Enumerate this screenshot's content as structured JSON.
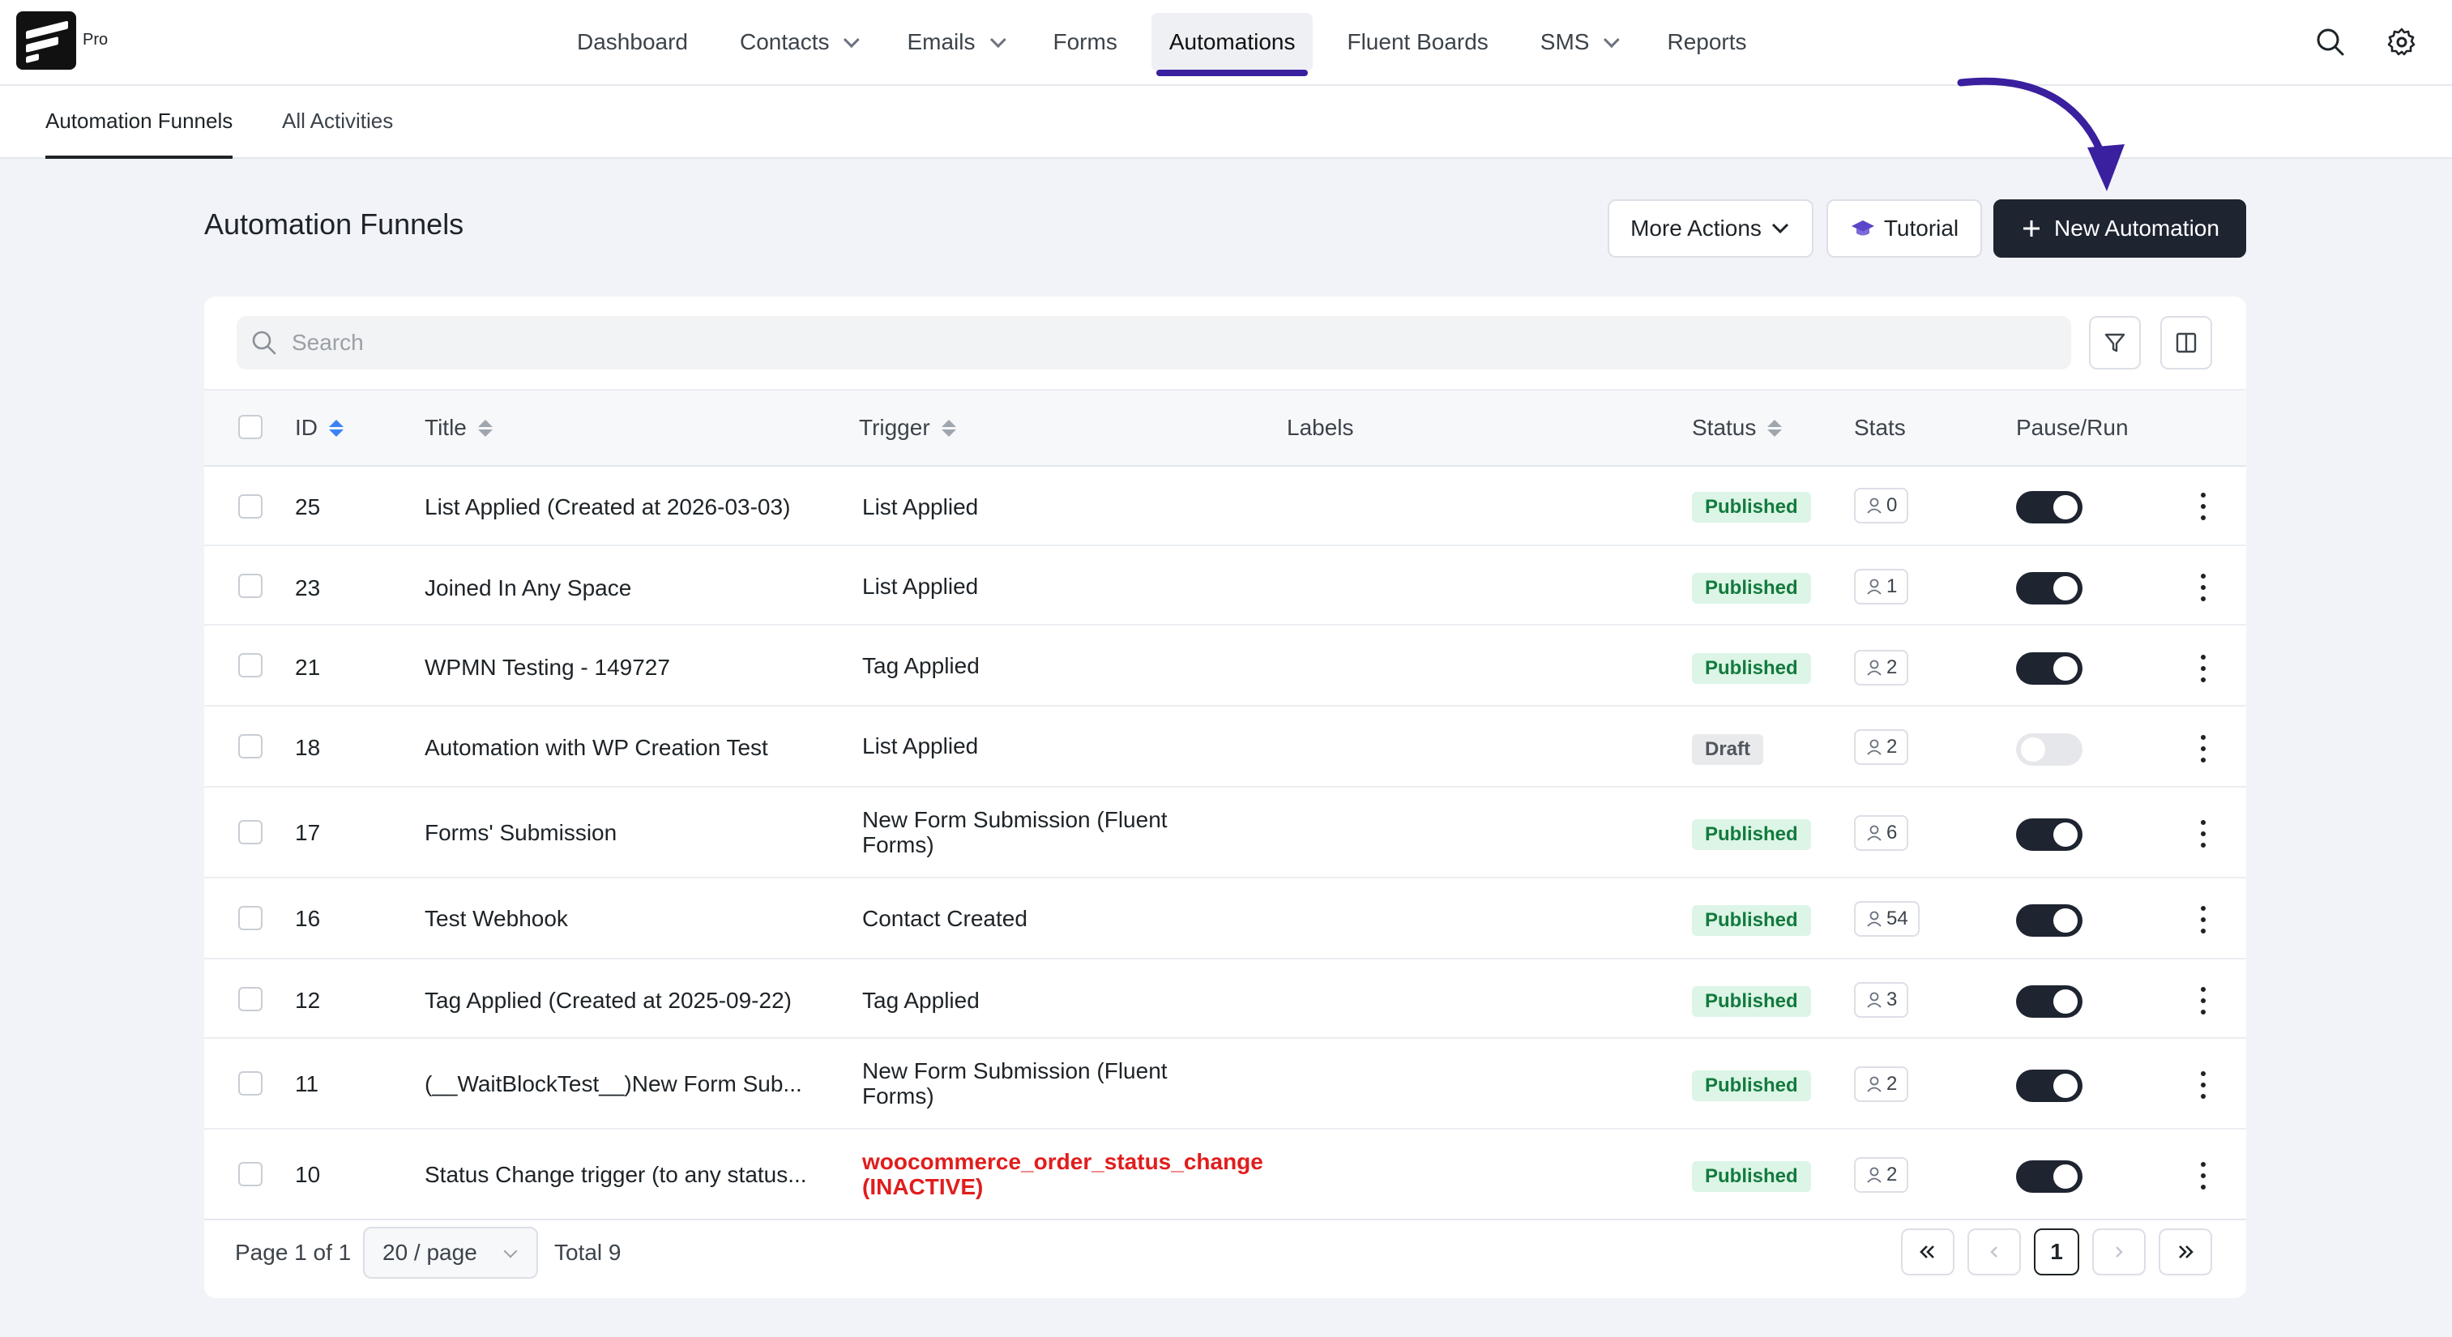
{
  "brand": {
    "tier": "Pro"
  },
  "nav": {
    "items": [
      {
        "label": "Dashboard"
      },
      {
        "label": "Contacts"
      },
      {
        "label": "Emails"
      },
      {
        "label": "Forms"
      },
      {
        "label": "Automations"
      },
      {
        "label": "Fluent Boards"
      },
      {
        "label": "SMS"
      },
      {
        "label": "Reports"
      }
    ],
    "active": "Automations",
    "icons": [
      "search-icon",
      "settings-gear-icon"
    ]
  },
  "subtabs": [
    {
      "label": "Automation Funnels",
      "active": true
    },
    {
      "label": "All Activities",
      "active": false
    }
  ],
  "page": {
    "title": "Automation Funnels",
    "more_actions": "More Actions",
    "tutorial": "Tutorial",
    "new_automation": "New Automation",
    "accent": "#3a1f9e"
  },
  "search": {
    "placeholder": "Search",
    "value": ""
  },
  "table": {
    "columns": {
      "id": "ID",
      "title": "Title",
      "trigger": "Trigger",
      "labels": "Labels",
      "status": "Status",
      "stats": "Stats",
      "pause_run": "Pause/Run"
    },
    "rows": [
      {
        "id": "25",
        "title": "List Applied (Created at 2026-03-03)",
        "trigger": "List Applied",
        "status": "Published",
        "stats": "0",
        "running": true
      },
      {
        "id": "23",
        "title": "Joined In Any Space",
        "trigger": "List Applied",
        "status": "Published",
        "stats": "1",
        "running": true
      },
      {
        "id": "21",
        "title": "WPMN Testing - 149727",
        "trigger": "Tag Applied",
        "status": "Published",
        "stats": "2",
        "running": true
      },
      {
        "id": "18",
        "title": "Automation with WP Creation Test",
        "trigger": "List Applied",
        "status": "Draft",
        "stats": "2",
        "running": false
      },
      {
        "id": "17",
        "title": "Forms' Submission",
        "trigger_line1": "New Form Submission (Fluent",
        "trigger_line2": "Forms)",
        "status": "Published",
        "stats": "6",
        "running": true
      },
      {
        "id": "16",
        "title": "Test Webhook",
        "trigger": "Contact Created",
        "status": "Published",
        "stats": "54",
        "running": true
      },
      {
        "id": "12",
        "title": "Tag Applied (Created at 2025-09-22)",
        "trigger": "Tag Applied",
        "status": "Published",
        "stats": "3",
        "running": true
      },
      {
        "id": "11",
        "title": "(__WaitBlockTest__)New Form Sub...",
        "trigger_line1": "New Form Submission (Fluent",
        "trigger_line2": "Forms)",
        "status": "Published",
        "stats": "2",
        "running": true
      },
      {
        "id": "10",
        "title": "Status Change trigger (to any status...",
        "trigger_line1": "woocommerce_order_status_change",
        "trigger_line2": "(INACTIVE)",
        "status": "Published",
        "stats": "2",
        "running": true
      }
    ]
  },
  "pagination": {
    "page_info": "Page 1 of 1",
    "per_page": "20 / page",
    "total": "Total 9",
    "current": "1"
  }
}
